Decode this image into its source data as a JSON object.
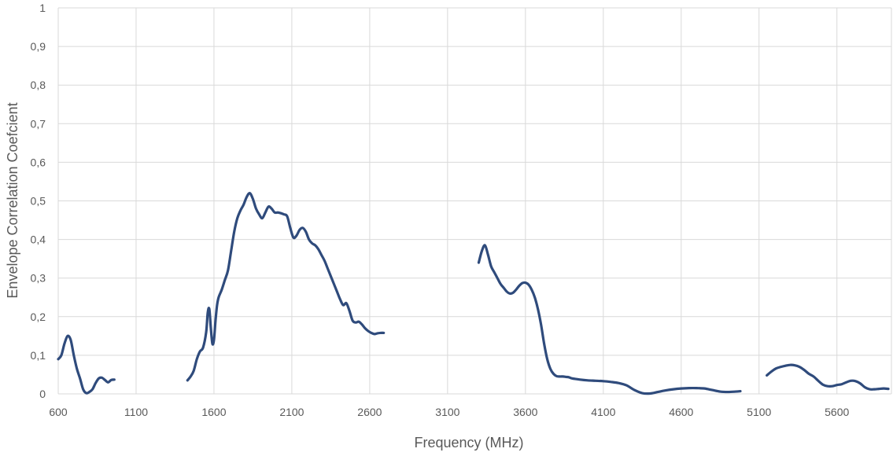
{
  "chart_data": {
    "type": "line",
    "title": "",
    "xlabel": "Frequency (MHz)",
    "ylabel": "Envelope Correlation Coefcient",
    "xlim": [
      600,
      5950
    ],
    "ylim": [
      0,
      1
    ],
    "x_ticks": [
      600,
      1100,
      1600,
      2100,
      2600,
      3100,
      3600,
      4100,
      4600,
      5100,
      5600
    ],
    "x_tick_labels": [
      "600",
      "1100",
      "1600",
      "2100",
      "2600",
      "3100",
      "3600",
      "4100",
      "4600",
      "5100",
      "5600"
    ],
    "y_ticks": [
      0,
      0.1,
      0.2,
      0.3,
      0.4,
      0.5,
      0.6,
      0.7,
      0.8,
      0.9,
      1
    ],
    "y_tick_labels": [
      "0",
      "0,1",
      "0,2",
      "0,3",
      "0,4",
      "0,5",
      "0,6",
      "0,7",
      "0,8",
      "0,9",
      "1"
    ],
    "grid": true,
    "legend": "none",
    "color": "#2f4b7c",
    "segments": [
      {
        "x": [
          600,
          620,
          640,
          660,
          680,
          700,
          720,
          740,
          760,
          780,
          800,
          820,
          840,
          860,
          880,
          900,
          920,
          940,
          960
        ],
        "y": [
          0.09,
          0.1,
          0.13,
          0.15,
          0.14,
          0.1,
          0.065,
          0.04,
          0.012,
          0.002,
          0.005,
          0.012,
          0.028,
          0.04,
          0.042,
          0.036,
          0.03,
          0.036,
          0.037
        ]
      },
      {
        "x": [
          1430,
          1450,
          1470,
          1490,
          1510,
          1530,
          1550,
          1560,
          1570,
          1580,
          1590,
          1600,
          1610,
          1620,
          1630,
          1650,
          1670,
          1690,
          1710,
          1730,
          1750,
          1770,
          1790,
          1810,
          1830,
          1850,
          1870,
          1890,
          1910,
          1930,
          1950,
          1970,
          1990,
          2010,
          2030,
          2050,
          2070,
          2090,
          2110,
          2130,
          2150,
          2170,
          2190,
          2210,
          2230,
          2250,
          2270,
          2290,
          2310,
          2330,
          2350,
          2370,
          2390,
          2410,
          2430,
          2450,
          2470,
          2490,
          2510,
          2530,
          2550,
          2570,
          2590,
          2610,
          2630,
          2650,
          2670,
          2690
        ],
        "y": [
          0.035,
          0.045,
          0.06,
          0.09,
          0.11,
          0.12,
          0.16,
          0.21,
          0.22,
          0.17,
          0.13,
          0.14,
          0.19,
          0.23,
          0.25,
          0.27,
          0.295,
          0.32,
          0.37,
          0.42,
          0.455,
          0.475,
          0.49,
          0.51,
          0.52,
          0.505,
          0.48,
          0.465,
          0.455,
          0.47,
          0.485,
          0.48,
          0.47,
          0.47,
          0.468,
          0.465,
          0.46,
          0.43,
          0.405,
          0.41,
          0.425,
          0.43,
          0.42,
          0.4,
          0.39,
          0.385,
          0.375,
          0.36,
          0.345,
          0.325,
          0.305,
          0.285,
          0.265,
          0.245,
          0.23,
          0.235,
          0.215,
          0.19,
          0.185,
          0.187,
          0.18,
          0.17,
          0.163,
          0.158,
          0.155,
          0.157,
          0.158,
          0.158
        ]
      },
      {
        "x": [
          3300,
          3320,
          3340,
          3360,
          3380,
          3400,
          3420,
          3440,
          3460,
          3480,
          3500,
          3520,
          3540,
          3560,
          3580,
          3600,
          3620,
          3640,
          3660,
          3680,
          3700,
          3720,
          3740,
          3760,
          3780,
          3800,
          3820,
          3840,
          3860,
          3880,
          3900,
          3950,
          4000,
          4050,
          4100,
          4150,
          4200,
          4250,
          4300,
          4350,
          4400,
          4450,
          4500,
          4550,
          4600,
          4650,
          4700,
          4750,
          4800,
          4850,
          4900,
          4950,
          4980
        ],
        "y": [
          0.34,
          0.37,
          0.385,
          0.36,
          0.33,
          0.315,
          0.3,
          0.285,
          0.275,
          0.265,
          0.26,
          0.262,
          0.27,
          0.28,
          0.287,
          0.288,
          0.283,
          0.27,
          0.25,
          0.22,
          0.18,
          0.13,
          0.09,
          0.065,
          0.052,
          0.046,
          0.045,
          0.045,
          0.044,
          0.043,
          0.04,
          0.037,
          0.035,
          0.034,
          0.033,
          0.031,
          0.028,
          0.022,
          0.01,
          0.002,
          0.001,
          0.005,
          0.009,
          0.012,
          0.014,
          0.015,
          0.015,
          0.014,
          0.01,
          0.006,
          0.005,
          0.006,
          0.007
        ]
      },
      {
        "x": [
          5150,
          5180,
          5210,
          5240,
          5270,
          5300,
          5330,
          5360,
          5390,
          5420,
          5450,
          5480,
          5510,
          5540,
          5570,
          5600,
          5630,
          5660,
          5690,
          5720,
          5750,
          5780,
          5810,
          5840,
          5870,
          5900,
          5930
        ],
        "y": [
          0.048,
          0.058,
          0.066,
          0.07,
          0.073,
          0.075,
          0.074,
          0.07,
          0.062,
          0.052,
          0.045,
          0.034,
          0.024,
          0.02,
          0.02,
          0.023,
          0.025,
          0.03,
          0.034,
          0.033,
          0.027,
          0.017,
          0.012,
          0.012,
          0.013,
          0.014,
          0.013
        ]
      }
    ]
  }
}
